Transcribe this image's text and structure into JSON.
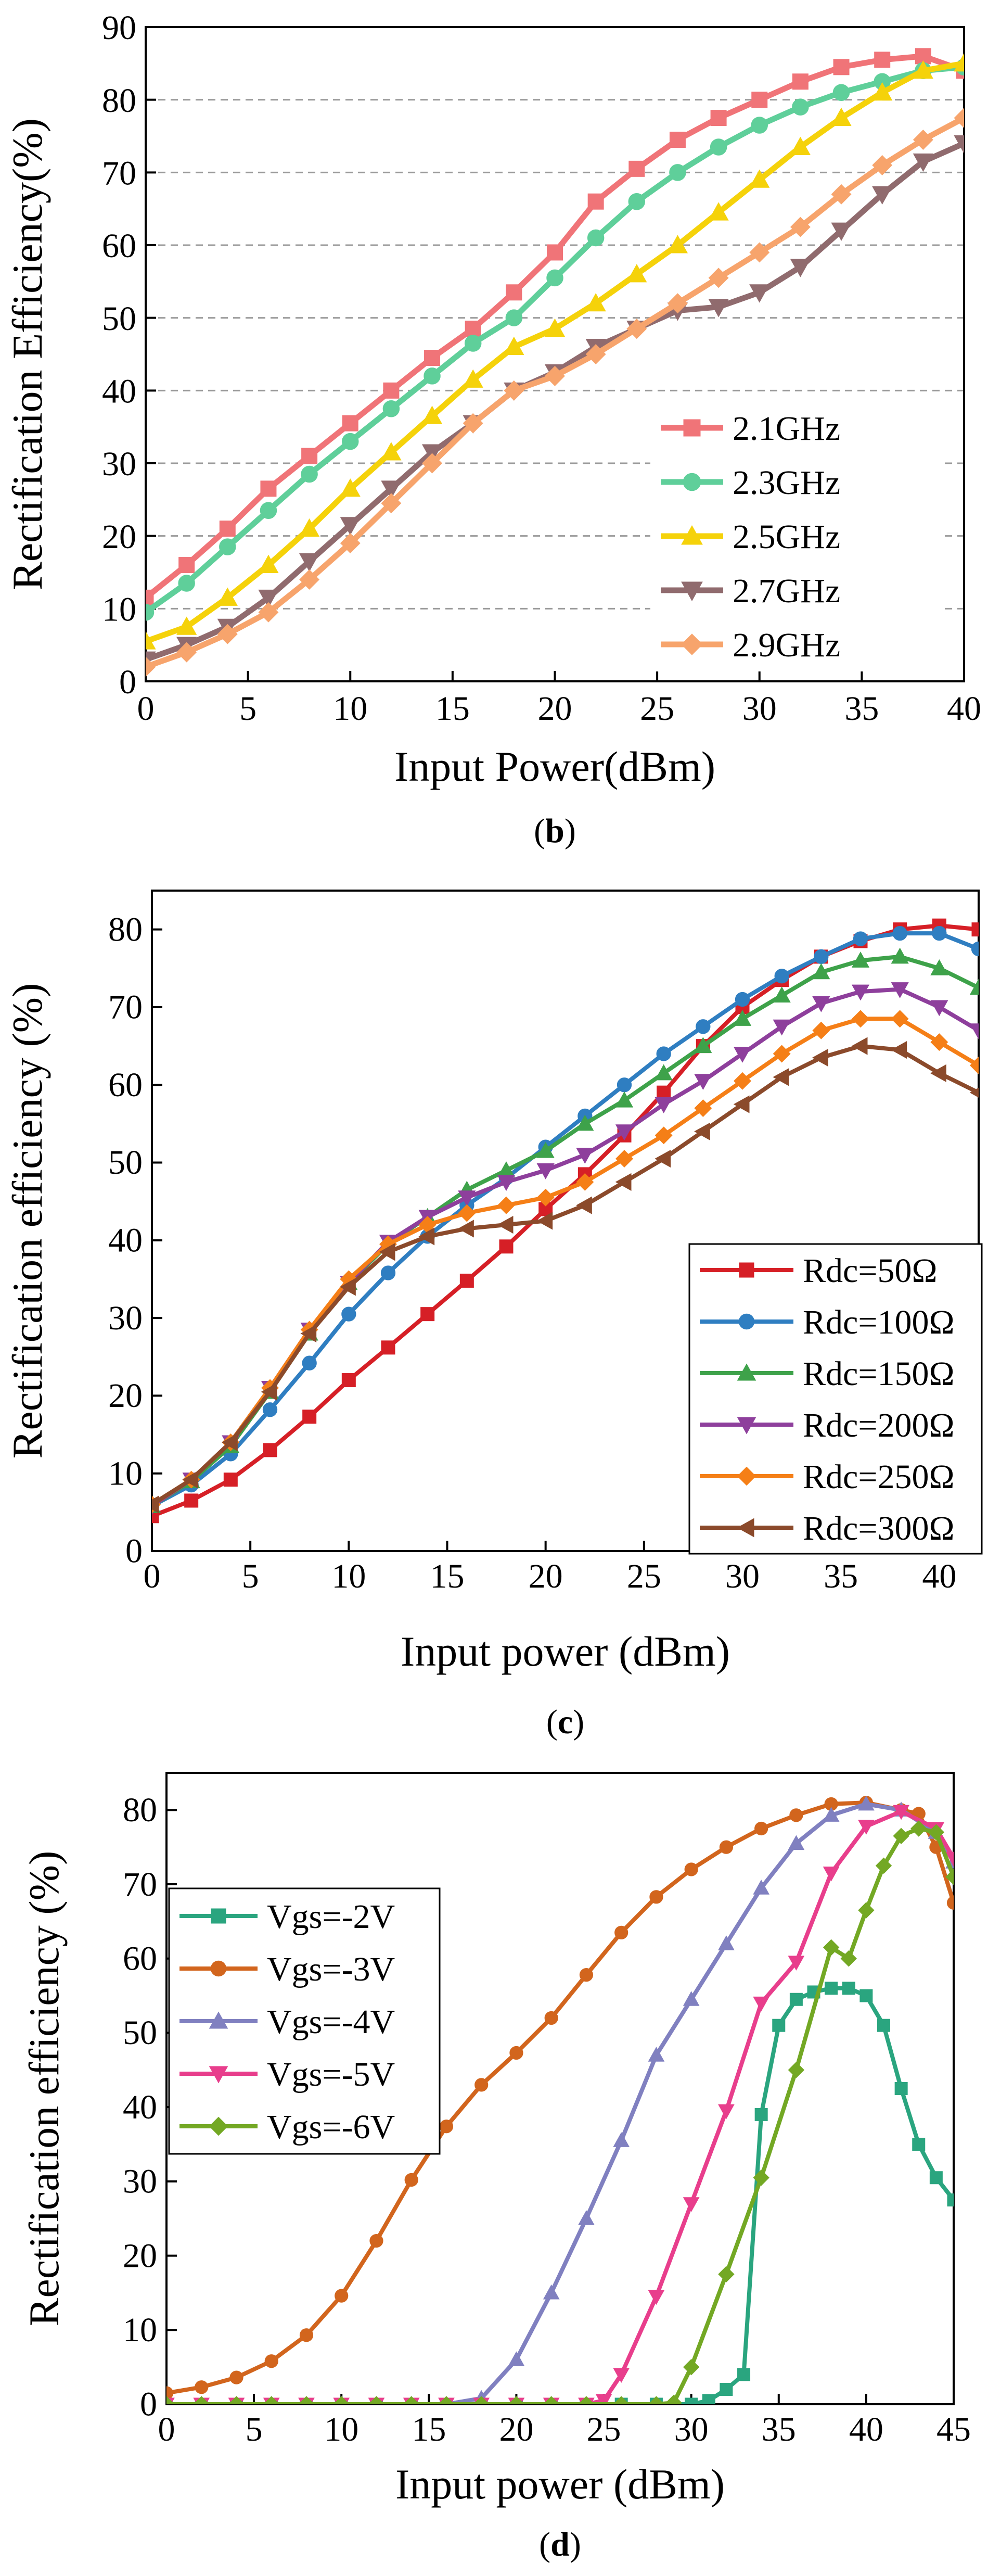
{
  "chart_data": [
    {
      "type": "line",
      "panel_label": "b",
      "title": "",
      "xlabel": "Input Power(dBm)",
      "ylabel": "Rectification Efficiency(%)",
      "xlim": [
        0,
        40
      ],
      "ylim": [
        0,
        90
      ],
      "xticks": [
        0,
        5,
        10,
        15,
        20,
        25,
        30,
        35,
        40
      ],
      "yticks": [
        0,
        10,
        20,
        30,
        40,
        50,
        60,
        70,
        80,
        90
      ],
      "grid": "horizontal dashed",
      "legend_position": "bottom-right",
      "series": [
        {
          "name": "2.1GHz",
          "color": "#f07478",
          "marker": "square",
          "x": [
            0,
            2,
            4,
            6,
            8,
            10,
            12,
            14,
            16,
            18,
            20,
            22,
            24,
            26,
            28,
            30,
            32,
            34,
            36,
            38,
            40
          ],
          "y": [
            11.5,
            16,
            21,
            26.5,
            31,
            35.5,
            40,
            44.5,
            48.5,
            53.5,
            59,
            66,
            70.5,
            74.5,
            77.5,
            80,
            82.5,
            84.5,
            85.5,
            86,
            84
          ]
        },
        {
          "name": "2.3GHz",
          "color": "#5fcf9a",
          "marker": "circle",
          "x": [
            0,
            2,
            4,
            6,
            8,
            10,
            12,
            14,
            16,
            18,
            20,
            22,
            24,
            26,
            28,
            30,
            32,
            34,
            36,
            38,
            40
          ],
          "y": [
            9.5,
            13.5,
            18.5,
            23.5,
            28.5,
            33,
            37.5,
            42,
            46.5,
            50,
            55.5,
            61,
            66,
            70,
            73.5,
            76.5,
            79,
            81,
            82.5,
            84,
            84.5
          ]
        },
        {
          "name": "2.5GHz",
          "color": "#f5d20a",
          "marker": "triangle",
          "x": [
            0,
            2,
            4,
            6,
            8,
            10,
            12,
            14,
            16,
            18,
            20,
            22,
            24,
            26,
            28,
            30,
            32,
            34,
            36,
            38,
            40
          ],
          "y": [
            5.5,
            7.5,
            11.5,
            16,
            21,
            26.5,
            31.5,
            36.5,
            41.5,
            46,
            48.5,
            52,
            56,
            60,
            64.5,
            69,
            73.5,
            77.5,
            81,
            84,
            85
          ]
        },
        {
          "name": "2.7GHz",
          "color": "#906b6e",
          "marker": "triangle-down",
          "x": [
            0,
            2,
            4,
            6,
            8,
            10,
            12,
            14,
            16,
            18,
            20,
            22,
            24,
            26,
            28,
            30,
            32,
            34,
            36,
            38,
            40
          ],
          "y": [
            3,
            5,
            7.5,
            11.5,
            16.5,
            21.5,
            26.5,
            31.5,
            35.5,
            40,
            42.5,
            46,
            48.5,
            51,
            51.5,
            53.5,
            57,
            62,
            67,
            71.5,
            74
          ]
        },
        {
          "name": "2.9GHz",
          "color": "#f7a46c",
          "marker": "diamond",
          "x": [
            0,
            2,
            4,
            6,
            8,
            10,
            12,
            14,
            16,
            18,
            20,
            22,
            24,
            26,
            28,
            30,
            32,
            34,
            36,
            38,
            40
          ],
          "y": [
            2,
            4,
            6.5,
            9.5,
            14,
            19,
            24.5,
            30,
            35.5,
            40,
            42,
            45,
            48.5,
            52,
            55.5,
            59,
            62.5,
            67,
            71,
            74.5,
            77.5
          ]
        }
      ]
    },
    {
      "type": "line",
      "panel_label": "c",
      "title": "",
      "xlabel": "Input power (dBm)",
      "ylabel": "Rectification efficiency (%)",
      "xlim": [
        0,
        42
      ],
      "ylim": [
        0,
        85
      ],
      "xticks": [
        0,
        5,
        10,
        15,
        20,
        25,
        30,
        35,
        40
      ],
      "yticks": [
        0,
        10,
        20,
        30,
        40,
        50,
        60,
        70,
        80
      ],
      "grid": "none",
      "legend_position": "bottom-right",
      "series": [
        {
          "name": "Rdc=50Ω",
          "color": "#d61f26",
          "marker": "square",
          "x": [
            0,
            2,
            4,
            6,
            8,
            10,
            12,
            14,
            16,
            18,
            20,
            22,
            24,
            26,
            28,
            30,
            32,
            34,
            36,
            38,
            40,
            42
          ],
          "y": [
            4.5,
            6.5,
            9.2,
            13,
            17.3,
            22,
            26.2,
            30.5,
            34.8,
            39.2,
            44,
            48.5,
            53.5,
            59,
            65,
            70,
            73.5,
            76.5,
            78.5,
            80,
            80.5,
            80
          ]
        },
        {
          "name": "Rdc=100Ω",
          "color": "#2f7ec1",
          "marker": "circle",
          "x": [
            0,
            2,
            4,
            6,
            8,
            10,
            12,
            14,
            16,
            18,
            20,
            22,
            24,
            26,
            28,
            30,
            32,
            34,
            36,
            38,
            40,
            42
          ],
          "y": [
            5.8,
            8.5,
            12.5,
            18.2,
            24.2,
            30.5,
            35.8,
            40.5,
            44.5,
            48,
            52,
            56,
            60,
            64,
            67.5,
            71,
            74,
            76.5,
            78.8,
            79.5,
            79.5,
            77.5
          ]
        },
        {
          "name": "Rdc=150Ω",
          "color": "#3ea24a",
          "marker": "triangle",
          "x": [
            0,
            2,
            4,
            6,
            8,
            10,
            12,
            14,
            16,
            18,
            20,
            22,
            24,
            26,
            28,
            30,
            32,
            34,
            36,
            38,
            40,
            42
          ],
          "y": [
            5.8,
            9,
            13.5,
            20.5,
            28,
            34.5,
            39.5,
            43,
            46.5,
            49,
            51.5,
            55,
            58,
            61.5,
            65,
            68.5,
            71.5,
            74.5,
            76,
            76.5,
            75,
            72.5
          ]
        },
        {
          "name": "Rdc=200Ω",
          "color": "#8e3f9c",
          "marker": "triangle-down",
          "x": [
            0,
            2,
            4,
            6,
            8,
            10,
            12,
            14,
            16,
            18,
            20,
            22,
            24,
            26,
            28,
            30,
            32,
            34,
            36,
            38,
            40,
            42
          ],
          "y": [
            5.8,
            9.2,
            14,
            21,
            28.5,
            34.5,
            39.8,
            43,
            45.5,
            47.5,
            49,
            51,
            54,
            57.5,
            60.5,
            64,
            67.5,
            70.5,
            72,
            72.3,
            70,
            67
          ]
        },
        {
          "name": "Rdc=250Ω",
          "color": "#f57f17",
          "marker": "diamond",
          "x": [
            0,
            2,
            4,
            6,
            8,
            10,
            12,
            14,
            16,
            18,
            20,
            22,
            24,
            26,
            28,
            30,
            32,
            34,
            36,
            38,
            40,
            42
          ],
          "y": [
            6,
            9.2,
            14,
            21,
            28.5,
            35,
            39.5,
            42,
            43.5,
            44.5,
            45.5,
            47.5,
            50.5,
            53.5,
            57,
            60.5,
            64,
            67,
            68.5,
            68.5,
            65.5,
            62.5
          ]
        },
        {
          "name": "Rdc=300Ω",
          "color": "#8b4a2b",
          "marker": "triangle-left",
          "x": [
            0,
            2,
            4,
            6,
            8,
            10,
            12,
            14,
            16,
            18,
            20,
            22,
            24,
            26,
            28,
            30,
            32,
            34,
            36,
            38,
            40,
            42
          ],
          "y": [
            6,
            9.2,
            14,
            20.5,
            28,
            34,
            38.5,
            40.5,
            41.5,
            42,
            42.5,
            44.5,
            47.5,
            50.5,
            54,
            57.5,
            61,
            63.5,
            65,
            64.5,
            61.5,
            59
          ]
        }
      ]
    },
    {
      "type": "line",
      "panel_label": "d",
      "title": "",
      "xlabel": "Input power (dBm)",
      "ylabel": "Rectification efficiency (%)",
      "xlim": [
        0,
        45
      ],
      "ylim": [
        0,
        85
      ],
      "xticks": [
        0,
        5,
        10,
        15,
        20,
        25,
        30,
        35,
        40,
        45
      ],
      "yticks": [
        0,
        10,
        20,
        30,
        40,
        50,
        60,
        70,
        80
      ],
      "grid": "none",
      "legend_position": "top-left",
      "series": [
        {
          "name": "Vgs=-2V",
          "color": "#2aa57f",
          "marker": "square",
          "x": [
            0,
            2,
            4,
            6,
            8,
            10,
            12,
            14,
            16,
            18,
            20,
            22,
            24,
            26,
            28,
            30,
            31,
            32,
            33,
            34,
            35,
            36,
            37,
            38,
            39,
            40,
            41,
            42,
            43,
            44,
            45
          ],
          "y": [
            0,
            0,
            0,
            0,
            0,
            0,
            0,
            0,
            0,
            0,
            0,
            0,
            0,
            0,
            0,
            0,
            0.5,
            2,
            4,
            39,
            51,
            54.5,
            55.5,
            56,
            56,
            55,
            51,
            42.5,
            35,
            30.5,
            27.5
          ]
        },
        {
          "name": "Vgs=-3V",
          "color": "#d2651d",
          "marker": "circle",
          "x": [
            0,
            2,
            4,
            6,
            8,
            10,
            12,
            14,
            16,
            18,
            20,
            22,
            24,
            26,
            28,
            30,
            32,
            34,
            36,
            38,
            40,
            42,
            43,
            44,
            45
          ],
          "y": [
            1.5,
            2.3,
            3.6,
            5.8,
            9.3,
            14.6,
            22,
            30.2,
            37.4,
            43,
            47.3,
            52,
            57.8,
            63.5,
            68.3,
            72,
            75,
            77.5,
            79.3,
            80.8,
            81,
            80,
            79.5,
            75,
            67.5
          ]
        },
        {
          "name": "Vgs=-4V",
          "color": "#8080c0",
          "marker": "triangle",
          "x": [
            0,
            2,
            4,
            6,
            8,
            10,
            12,
            14,
            16,
            18,
            20,
            22,
            24,
            26,
            28,
            30,
            32,
            34,
            36,
            38,
            40,
            42,
            44,
            45
          ],
          "y": [
            0,
            0,
            0,
            0,
            0,
            0,
            0,
            0,
            0,
            0.8,
            6,
            15,
            25,
            35.5,
            47,
            54.5,
            62,
            69.5,
            75.5,
            79.3,
            80.8,
            80,
            77,
            73
          ]
        },
        {
          "name": "Vgs=-5V",
          "color": "#e83e8c",
          "marker": "triangle-down",
          "x": [
            0,
            2,
            4,
            6,
            8,
            10,
            12,
            14,
            16,
            18,
            20,
            22,
            24,
            25,
            26,
            28,
            30,
            32,
            34,
            36,
            38,
            40,
            42,
            44,
            45
          ],
          "y": [
            0,
            0,
            0,
            0,
            0,
            0,
            0,
            0,
            0,
            0,
            0,
            0,
            0,
            0.5,
            4,
            14.5,
            27,
            39.5,
            54,
            59.5,
            71.5,
            77.8,
            79.8,
            77.5,
            73.5
          ]
        },
        {
          "name": "Vgs=-6V",
          "color": "#73a824",
          "marker": "diamond",
          "x": [
            0,
            2,
            4,
            6,
            8,
            10,
            12,
            14,
            16,
            18,
            20,
            22,
            24,
            26,
            28,
            29,
            30,
            32,
            34,
            36,
            38,
            39,
            40,
            41,
            42,
            43,
            44,
            45
          ],
          "y": [
            0,
            0,
            0,
            0,
            0,
            0,
            0,
            0,
            0,
            0,
            0,
            0,
            0,
            0,
            0,
            0.2,
            5,
            17.5,
            30.5,
            45,
            61.5,
            60,
            66.5,
            72.5,
            76.5,
            77.5,
            77,
            71
          ]
        }
      ]
    }
  ]
}
